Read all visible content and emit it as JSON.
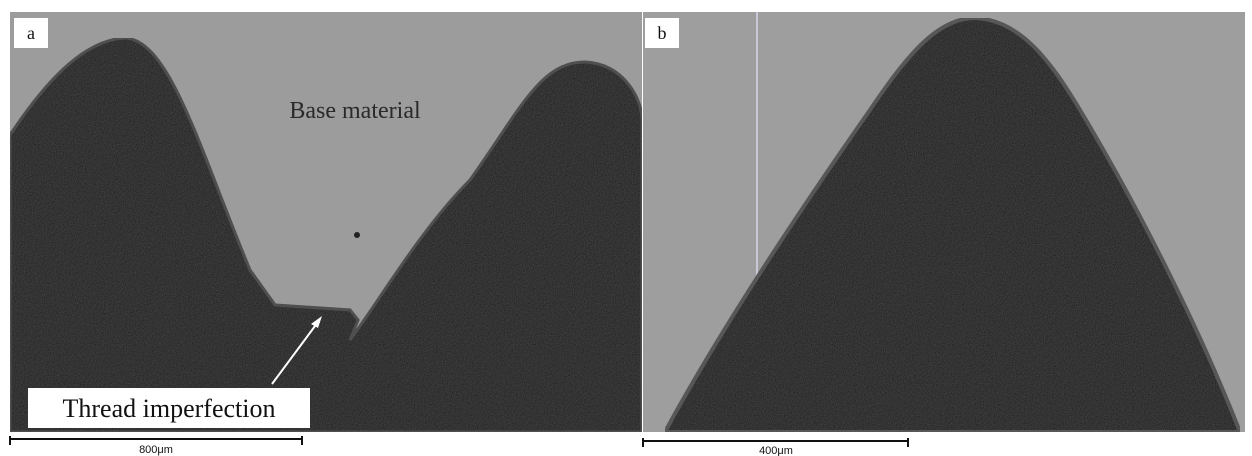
{
  "panels": [
    {
      "label": "a",
      "annotations": [
        "Base material",
        "Thread imperfection"
      ],
      "scale_bar": "800μm"
    },
    {
      "label": "b",
      "scale_bar": "400μm"
    }
  ]
}
